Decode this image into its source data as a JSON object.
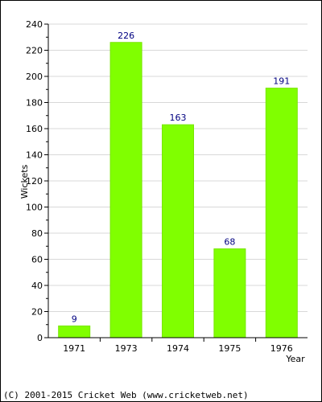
{
  "colors": {
    "bar": "#80FF00",
    "bar_stroke": "#77E600",
    "grid": "#D8D8D8",
    "axis": "#000000",
    "data_label": "#000080"
  },
  "chart_data": {
    "type": "bar",
    "categories": [
      "1971",
      "1973",
      "1974",
      "1975",
      "1976"
    ],
    "values": [
      9,
      226,
      163,
      68,
      191
    ],
    "data_labels": [
      "9",
      "226",
      "163",
      "68",
      "191"
    ],
    "title": "",
    "xlabel": "Year",
    "ylabel": "Wickets",
    "ylim": [
      0,
      240
    ],
    "yticks": [
      "0",
      "20",
      "40",
      "60",
      "80",
      "100",
      "120",
      "140",
      "160",
      "180",
      "200",
      "220",
      "240"
    ],
    "grid": true,
    "legend": "none"
  },
  "footer": {
    "copyright": "(C) 2001-2015 Cricket Web (www.cricketweb.net)"
  }
}
